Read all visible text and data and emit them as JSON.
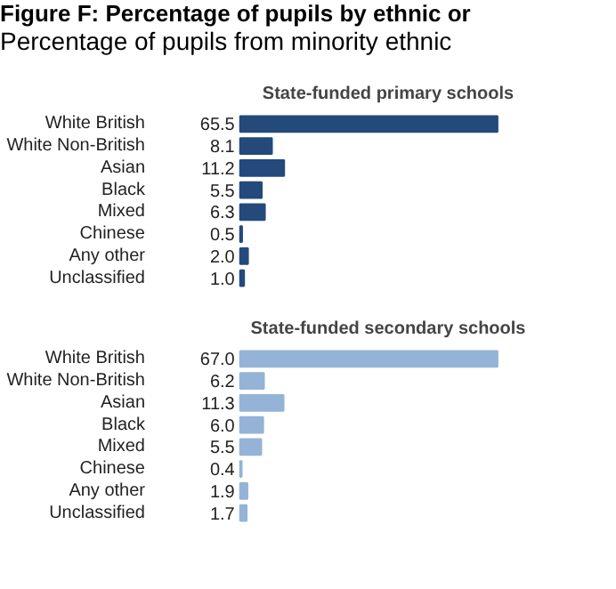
{
  "chart_data": [
    {
      "type": "other",
      "title": "Figure F: Percentage of pupils by ethnic or",
      "subtitle": "Percentage of pupils from minority ethnic"
    },
    {
      "type": "bar",
      "orientation": "horizontal",
      "title": "State-funded primary schools",
      "categories": [
        "White British",
        "White Non-British",
        "Asian",
        "Black",
        "Mixed",
        "Chinese",
        "Any other",
        "Unclassified"
      ],
      "values": [
        65.5,
        8.1,
        11.2,
        5.5,
        6.3,
        0.5,
        2.0,
        1.0
      ],
      "value_labels": [
        "65.5",
        "8.1",
        "11.2",
        "5.5",
        "6.3",
        "0.5",
        "2.0",
        "1.0"
      ],
      "color": "#244a7c",
      "grid": false
    },
    {
      "type": "bar",
      "orientation": "horizontal",
      "title": "State-funded secondary schools",
      "categories": [
        "White British",
        "White Non-British",
        "Asian",
        "Black",
        "Mixed",
        "Chinese",
        "Any other",
        "Unclassified"
      ],
      "values": [
        67.0,
        6.2,
        11.3,
        6.0,
        5.5,
        0.4,
        1.9,
        1.7
      ],
      "value_labels": [
        "67.0",
        "6.2",
        "11.3",
        "6.0",
        "5.5",
        "0.4",
        "1.9",
        "1.7"
      ],
      "color": "#95b3d7",
      "grid": false
    }
  ]
}
